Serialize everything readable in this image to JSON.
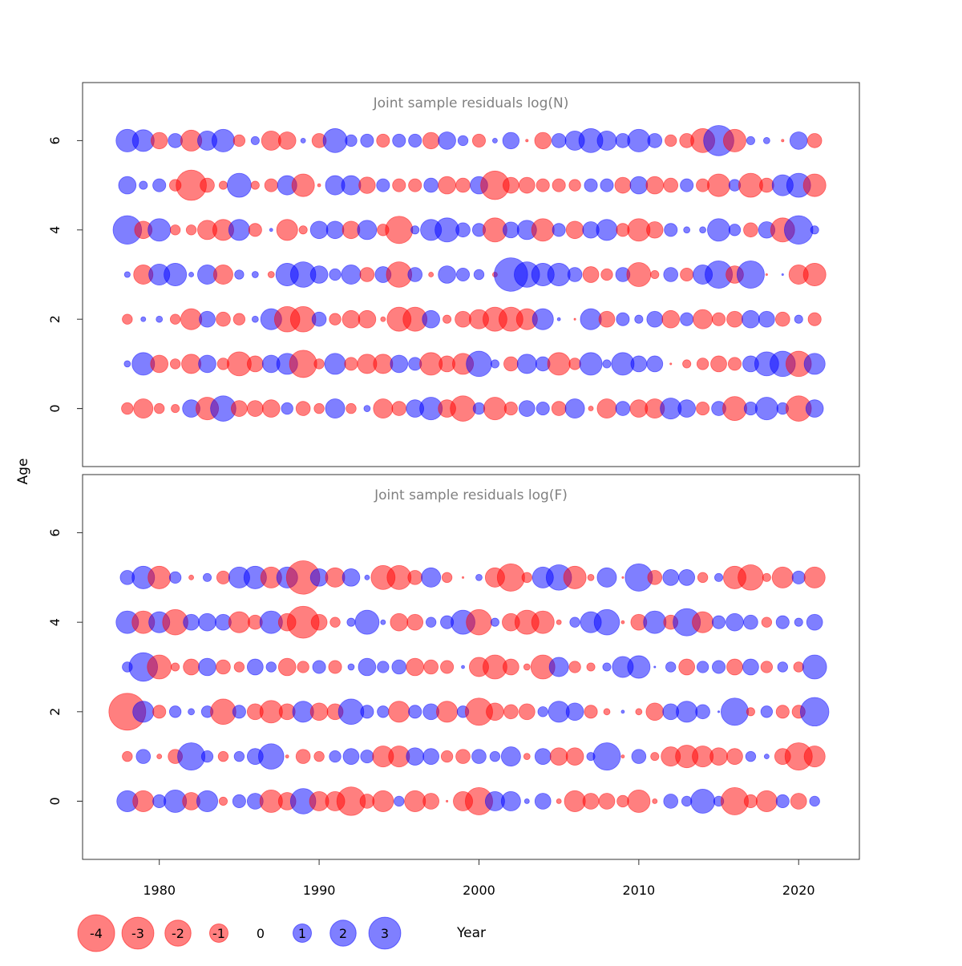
{
  "chart_data": [
    {
      "type": "scatter",
      "subtype": "bubble",
      "title": "Joint sample residuals log(N)",
      "xlabel": "Year",
      "ylabel": "Age",
      "xlim": [
        1975.2,
        2023.8
      ],
      "ylim": [
        -1.3,
        7.3
      ],
      "xticks": [
        1980,
        1990,
        2000,
        2010,
        2020
      ],
      "yticks": [
        0,
        2,
        4,
        6
      ],
      "years_start": 1978,
      "years_end": 2021,
      "residuals_by_age": {
        "6": [
          1.5,
          1.4,
          -0.8,
          0.6,
          -1.3,
          1.1,
          1.5,
          -0.4,
          0.2,
          -1.1,
          -0.9,
          0.07,
          -0.6,
          1.7,
          0.4,
          0.5,
          -0.5,
          0.5,
          0.5,
          -0.8,
          0.9,
          0.3,
          -0.5,
          0.07,
          0.8,
          -0.02,
          -0.8,
          0.6,
          1.1,
          1.7,
          1.1,
          0.6,
          1.5,
          0.6,
          -0.4,
          -0.6,
          -1.7,
          2.7,
          -1.5,
          0.2,
          0.12,
          -0.02,
          0.9,
          -0.6
        ],
        "5": [
          0.9,
          0.2,
          0.5,
          -0.4,
          -2.7,
          -0.6,
          -0.2,
          1.7,
          -0.2,
          -0.5,
          1.1,
          -1.5,
          -0.03,
          1.1,
          1.1,
          -0.8,
          0.5,
          -0.5,
          -0.5,
          0.6,
          -0.9,
          -0.6,
          0.9,
          -2.4,
          -0.75,
          -0.75,
          -0.5,
          -0.5,
          -0.4,
          0.5,
          0.5,
          -0.75,
          0.9,
          -0.9,
          -0.6,
          0.5,
          -0.5,
          -1.5,
          0.4,
          -1.7,
          -0.6,
          1.3,
          1.7,
          -1.5
        ],
        "4": [
          2.4,
          -0.9,
          1.5,
          -0.3,
          -0.3,
          -1.1,
          -1.3,
          1.3,
          -0.5,
          0.03,
          -1.3,
          -0.2,
          0.9,
          0.9,
          -0.9,
          1.1,
          -0.4,
          -2.2,
          0.2,
          1.3,
          1.7,
          0.6,
          0.5,
          -1.7,
          0.75,
          1.1,
          -1.5,
          0.5,
          -0.9,
          0.8,
          1.3,
          -0.5,
          -1.5,
          -0.8,
          0.5,
          0.12,
          0.12,
          1.5,
          0.4,
          -0.6,
          0.8,
          -1.7,
          2.4,
          0.2
        ],
        "3": [
          0.1,
          -1.1,
          1.3,
          1.5,
          0.07,
          1.1,
          -1.1,
          0.25,
          0.12,
          -0.12,
          1.5,
          1.9,
          0.9,
          0.4,
          1.1,
          -0.6,
          0.75,
          -1.9,
          0.6,
          -0.07,
          0.9,
          0.5,
          0.3,
          -0.07,
          3.3,
          1.9,
          1.5,
          1.5,
          0.6,
          -0.75,
          -0.4,
          0.6,
          -1.7,
          -0.2,
          0.6,
          -0.5,
          1.1,
          2.2,
          -0.9,
          2.2,
          -0.01,
          0.01,
          -1.1,
          -1.5
        ],
        "2": [
          -0.3,
          0.07,
          0.12,
          -0.3,
          -1.3,
          0.75,
          -0.6,
          -0.4,
          0.12,
          1.3,
          -1.9,
          -1.9,
          0.6,
          -0.4,
          -0.9,
          -0.9,
          -0.07,
          -1.7,
          -1.7,
          0.9,
          -0.2,
          -0.75,
          -1.1,
          -1.7,
          -1.7,
          -1.3,
          1.3,
          0.03,
          -0.01,
          1.3,
          -0.75,
          0.5,
          0.2,
          0.75,
          -0.9,
          0.5,
          -1.1,
          -0.5,
          -0.75,
          0.9,
          0.75,
          -0.6,
          0.2,
          -0.5
        ],
        "1": [
          0.12,
          1.5,
          -0.9,
          -0.3,
          -1.1,
          0.9,
          -0.4,
          -1.7,
          -0.75,
          0.9,
          1.3,
          -2.2,
          -0.3,
          1.3,
          -0.5,
          -1.1,
          -1.1,
          0.9,
          0.5,
          -1.5,
          -0.75,
          -1.3,
          1.9,
          0.2,
          -0.6,
          1.1,
          0.6,
          -1.5,
          -0.4,
          1.5,
          0.2,
          1.5,
          0.75,
          0.75,
          -0.01,
          -0.2,
          -0.4,
          -0.75,
          -0.5,
          0.75,
          1.7,
          1.9,
          -1.9,
          1.3
        ],
        "0": [
          -0.4,
          -1.1,
          -0.3,
          -0.2,
          0.9,
          -1.5,
          1.9,
          -0.75,
          -0.75,
          -0.9,
          0.4,
          -0.6,
          -0.3,
          1.1,
          -0.3,
          0.12,
          -1.1,
          -0.6,
          0.9,
          1.5,
          -0.9,
          -1.9,
          0.4,
          -1.5,
          -0.5,
          0.75,
          0.5,
          -0.6,
          1.1,
          -0.07,
          -1.1,
          0.6,
          -0.9,
          -1.1,
          1.3,
          0.9,
          -0.5,
          0.6,
          -1.7,
          0.5,
          1.5,
          0.4,
          -1.9,
          0.9
        ]
      }
    },
    {
      "type": "scatter",
      "subtype": "bubble",
      "title": "Joint sample residuals log(F)",
      "xlabel": "Year",
      "ylabel": "Age",
      "xlim": [
        1975.2,
        2023.8
      ],
      "ylim": [
        -1.3,
        7.3
      ],
      "xticks": [
        1980,
        1990,
        2000,
        2010,
        2020
      ],
      "yticks": [
        0,
        2,
        4,
        6
      ],
      "years_start": 1978,
      "years_end": 2021,
      "residuals_by_age": {
        "5": [
          0.6,
          1.5,
          -1.5,
          0.4,
          -0.07,
          0.2,
          -0.5,
          1.3,
          1.5,
          -1.3,
          1.3,
          -3.3,
          0.9,
          -1.1,
          0.9,
          0.07,
          -1.7,
          -1.7,
          -0.6,
          1.1,
          -0.3,
          -0.01,
          0.12,
          -1.1,
          -2.2,
          -0.3,
          1.3,
          1.9,
          -1.5,
          -0.12,
          1.1,
          -0.01,
          2.2,
          -0.6,
          0.75,
          0.75,
          -0.3,
          0.2,
          -1.5,
          -1.9,
          -0.2,
          -1.3,
          0.5,
          -1.3
        ],
        "4": [
          1.5,
          -1.5,
          1.3,
          -1.9,
          0.75,
          0.9,
          0.75,
          -1.3,
          -0.6,
          1.5,
          -0.9,
          -3.0,
          -0.75,
          -0.3,
          0.2,
          1.7,
          0.07,
          -0.9,
          -0.75,
          0.3,
          0.5,
          1.7,
          -1.9,
          0.2,
          -0.9,
          -1.7,
          -1.5,
          -0.07,
          0.3,
          1.3,
          1.9,
          -0.03,
          -0.75,
          1.5,
          -0.6,
          2.2,
          -1.3,
          0.5,
          0.9,
          0.6,
          -0.3,
          0.5,
          0.2,
          0.75
        ],
        "3": [
          0.3,
          2.4,
          -1.7,
          -0.2,
          -0.75,
          0.9,
          -0.6,
          -0.3,
          0.75,
          0.3,
          -0.9,
          -0.4,
          0.5,
          -0.5,
          0.12,
          0.9,
          0.4,
          0.6,
          -0.9,
          -0.6,
          -0.5,
          0.03,
          -1.1,
          -1.7,
          -0.75,
          -0.12,
          -1.7,
          1.1,
          -0.4,
          -0.2,
          0.2,
          1.3,
          1.5,
          0.01,
          0.3,
          -0.75,
          0.4,
          0.5,
          -0.75,
          0.75,
          -0.4,
          0.3,
          -0.3,
          1.7
        ],
        "2": [
          -4.0,
          1.3,
          -0.5,
          0.4,
          0.12,
          0.4,
          -1.9,
          0.5,
          -0.75,
          -1.5,
          -0.75,
          1.3,
          -0.9,
          -0.75,
          1.9,
          0.5,
          0.4,
          -1.3,
          0.5,
          0.75,
          -1.3,
          0.4,
          -2.2,
          -0.9,
          -0.6,
          -0.75,
          0.3,
          1.3,
          0.9,
          -0.5,
          -0.12,
          0.03,
          -0.12,
          -0.9,
          0.75,
          1.3,
          0.6,
          0.01,
          2.2,
          -0.2,
          0.4,
          -0.5,
          -0.5,
          2.4
        ],
        "1": [
          -0.3,
          0.6,
          -0.07,
          -0.6,
          2.2,
          0.4,
          -0.3,
          0.3,
          0.75,
          1.9,
          -0.03,
          -0.6,
          -0.3,
          0.4,
          0.75,
          0.5,
          -1.3,
          -1.3,
          0.9,
          0.75,
          -0.4,
          -0.6,
          0.6,
          0.3,
          1.1,
          -0.12,
          0.75,
          -0.9,
          -0.9,
          0.2,
          2.2,
          -0.03,
          0.6,
          -0.2,
          -1.1,
          -1.5,
          -1.3,
          -0.9,
          -0.75,
          0.3,
          0.07,
          -0.75,
          -2.2,
          -1.3
        ],
        "0": [
          1.3,
          -1.3,
          0.5,
          1.5,
          -0.9,
          1.3,
          -0.2,
          0.5,
          0.75,
          -1.5,
          -0.9,
          1.9,
          -1.1,
          -1.1,
          -2.4,
          -0.6,
          -1.3,
          0.3,
          -1.3,
          -0.75,
          -0.01,
          -1.1,
          -2.2,
          1.1,
          1.1,
          0.07,
          0.75,
          -0.07,
          -1.3,
          -0.75,
          -0.75,
          -0.4,
          -1.5,
          -0.07,
          0.6,
          0.3,
          1.7,
          0.3,
          -2.2,
          -0.5,
          -1.3,
          0.5,
          -0.75,
          0.3
        ]
      }
    }
  ],
  "axis": {
    "ylabel": "Age",
    "xlabel": "Year"
  },
  "legend": {
    "values": [
      -4,
      -3,
      -2,
      -1,
      0,
      1,
      2,
      3
    ],
    "labels": [
      "-4",
      "-3",
      "-2",
      "-1",
      "0",
      "1",
      "2",
      "3"
    ]
  },
  "colors": {
    "negative": "#ff0000",
    "positive": "#0000ff",
    "title": "#808080"
  }
}
